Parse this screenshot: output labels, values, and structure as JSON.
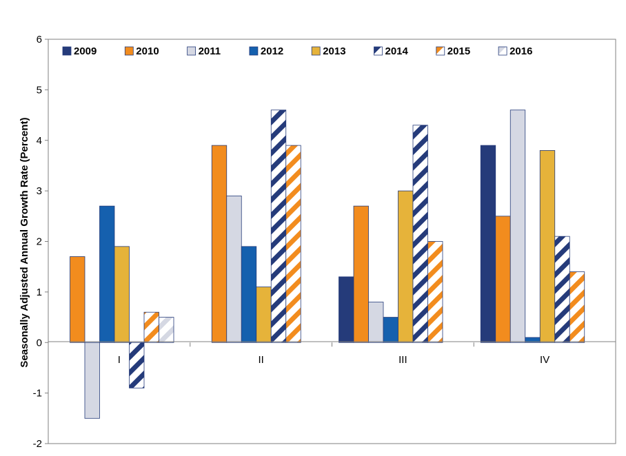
{
  "chart_data": {
    "type": "bar",
    "title": "",
    "xlabel": "",
    "ylabel": "Seasonally Adjusted Annual Growth Rate (Percent)",
    "ylim": [
      -2,
      6
    ],
    "yticks": [
      "-2",
      "-1",
      "0",
      "1",
      "2",
      "3",
      "4",
      "5",
      "6"
    ],
    "categories": [
      "I",
      "II",
      "III",
      "IV"
    ],
    "legend_position": "top",
    "grid": false,
    "series": [
      {
        "name": "2009",
        "color": "#253b7a",
        "pattern": "solid",
        "values": [
          null,
          null,
          1.3,
          3.9
        ]
      },
      {
        "name": "2010",
        "color": "#f28c1e",
        "pattern": "solid",
        "values": [
          1.7,
          3.9,
          2.7,
          2.5
        ]
      },
      {
        "name": "2011",
        "color": "#d5d8e3",
        "pattern": "solid",
        "values": [
          -1.5,
          2.9,
          0.8,
          4.6
        ]
      },
      {
        "name": "2012",
        "color": "#1560ae",
        "pattern": "solid",
        "values": [
          2.7,
          1.9,
          0.5,
          0.1
        ]
      },
      {
        "name": "2013",
        "color": "#e6b33a",
        "pattern": "solid",
        "values": [
          1.9,
          1.1,
          3.0,
          3.8
        ]
      },
      {
        "name": "2014",
        "color": "#253b7a",
        "pattern": "hatch-navy",
        "values": [
          -0.9,
          4.6,
          4.3,
          2.1
        ]
      },
      {
        "name": "2015",
        "color": "#f28c1e",
        "pattern": "hatch-orange",
        "values": [
          0.6,
          3.9,
          2.0,
          1.4
        ]
      },
      {
        "name": "2016",
        "color": "#d5d8e3",
        "pattern": "hatch-gray",
        "values": [
          0.5,
          null,
          null,
          null
        ]
      }
    ]
  }
}
